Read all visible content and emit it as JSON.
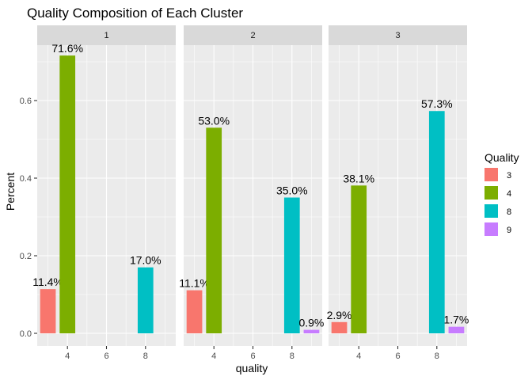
{
  "chart_data": {
    "type": "bar",
    "title": "Quality Composition of Each Cluster",
    "xlabel": "quality",
    "ylabel": "Percent",
    "xlim": [
      2.45,
      9.55
    ],
    "ylim": [
      0,
      0.75
    ],
    "x_ticks": [
      4,
      6,
      8
    ],
    "x_minor_ticks": [
      3,
      5,
      7,
      9
    ],
    "y_ticks": [
      {
        "value": 0.0,
        "label": "0.0"
      },
      {
        "value": 0.2,
        "label": "0.2"
      },
      {
        "value": 0.4,
        "label": "0.4"
      },
      {
        "value": 0.6,
        "label": "0.6"
      }
    ],
    "facets": [
      {
        "label": "1",
        "bars": [
          {
            "quality": 3,
            "value": 0.114,
            "label": "11.4%"
          },
          {
            "quality": 4,
            "value": 0.716,
            "label": "71.6%"
          },
          {
            "quality": 8,
            "value": 0.17,
            "label": "17.0%"
          }
        ]
      },
      {
        "label": "2",
        "bars": [
          {
            "quality": 3,
            "value": 0.111,
            "label": "11.1%"
          },
          {
            "quality": 4,
            "value": 0.53,
            "label": "53.0%"
          },
          {
            "quality": 8,
            "value": 0.35,
            "label": "35.0%"
          },
          {
            "quality": 9,
            "value": 0.009,
            "label": "0.9%"
          }
        ]
      },
      {
        "label": "3",
        "bars": [
          {
            "quality": 3,
            "value": 0.029,
            "label": "2.9%"
          },
          {
            "quality": 4,
            "value": 0.381,
            "label": "38.1%"
          },
          {
            "quality": 8,
            "value": 0.573,
            "label": "57.3%"
          },
          {
            "quality": 9,
            "value": 0.017,
            "label": "1.7%"
          }
        ]
      }
    ],
    "legend": {
      "title": "Quality",
      "position": "right",
      "items": [
        {
          "label": "3",
          "color": "#F8766D"
        },
        {
          "label": "4",
          "color": "#7CAE00"
        },
        {
          "label": "8",
          "color": "#00BFC4"
        },
        {
          "label": "9",
          "color": "#C77CFF"
        }
      ]
    },
    "grid": true
  }
}
